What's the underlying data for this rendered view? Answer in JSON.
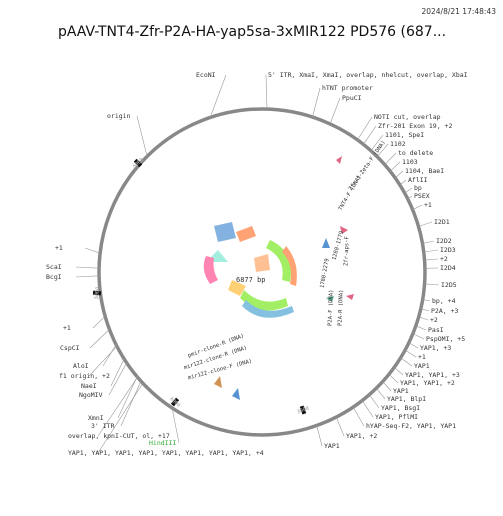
{
  "header": {
    "timestamp": "2024/8/21 17:48:43",
    "title": "pAAV-TNT4-Zfr-P2A-HA-yap5sa-3xMIR122 PD576 (687..."
  },
  "map": {
    "length_label": "6877 bp",
    "ring_ticks": [
      "6000",
      "5000",
      "4000",
      "3000"
    ],
    "features": [
      "EcoNI",
      "5' ITR, XmaI, XmaI, overlap, nhelcut, overlap, XbaI",
      "hTNT promoter",
      "PpuCI",
      "NOTI cut, overlap",
      "Zfr-201 Exon 19, +2",
      "1101, SpeI",
      "1102",
      "to delete",
      "1103",
      "1104, BaeI",
      "AflII",
      "bp",
      "PSEX",
      "+1",
      "I2D1",
      "I2D2",
      "I2D3",
      "+2",
      "I2D4",
      "I2D5",
      "bp, +4",
      "P2A, +3",
      "+2",
      "PasI",
      "PspOMI, +5",
      "YAP1, +3",
      "+1",
      "YAP1",
      "YAP1, YAP1, +3",
      "YAP1, YAP1, +2",
      "YAP1",
      "YAP1, BlpI",
      "YAP1, BsgI",
      "YAP1, PflMI",
      "hYAP-Seq-F2, YAP1, YAP1",
      "YAP1, +2",
      "YAP1",
      "YAP1, YAP1, YAP1, YAP1, YAP1, YAP1, YAP1, YAP1, +4",
      "HindIII",
      "overlap, kpnI-CUT, ol, +17",
      "3' ITR",
      "XmnI",
      "origin",
      "+1",
      "ScaI",
      "BcgI",
      "+1",
      "CspCI",
      "AloI",
      "f1 origin, +2",
      "NaeI",
      "NgoMIV"
    ],
    "inner_labels": [
      "pmir-clone-R (DNA)",
      "mir122-clone-R (DNA)",
      "mir122-clone-F (DNA)",
      "Zfr-aps-F",
      "P2A-F (DNA)",
      "P2A-R (DNA)",
      "1780-2279",
      "1280-1779",
      "TNT4-F (DNA)",
      "Zfr-f-Zeta-F (DNA)"
    ]
  }
}
